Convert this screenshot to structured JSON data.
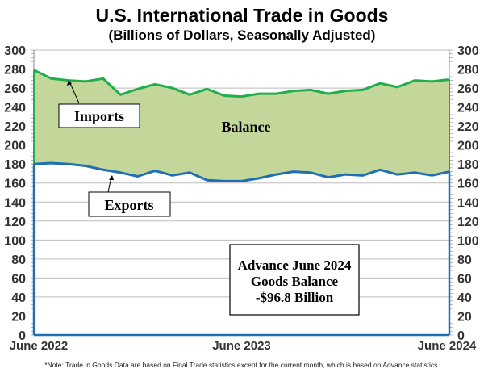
{
  "chart_data": {
    "type": "area",
    "title": "U.S. International Trade in Goods",
    "subtitle": "(Billions of Dollars, Seasonally Adjusted)",
    "x_tick_labels": [
      "June 2022",
      "June 2023",
      "June 2024"
    ],
    "x_start": "2022-06",
    "x_end": "2024-06",
    "x_frequency": "monthly",
    "ylim": [
      0,
      300
    ],
    "y_ticks": [
      0,
      20,
      40,
      60,
      80,
      100,
      120,
      140,
      160,
      180,
      200,
      220,
      240,
      260,
      280,
      300
    ],
    "grid": true,
    "series": [
      {
        "name": "Imports",
        "color": "#1fae4b",
        "values": [
          279,
          270,
          268,
          267,
          270,
          253,
          259,
          264,
          260,
          253,
          259,
          252,
          251,
          254,
          254,
          257,
          258,
          254,
          257,
          258,
          265,
          261,
          268,
          267,
          269
        ]
      },
      {
        "name": "Exports",
        "color": "#1f6fb4",
        "values": [
          180,
          181,
          180,
          178,
          174,
          171,
          167,
          173,
          168,
          171,
          163,
          162,
          162,
          165,
          169,
          172,
          171,
          166,
          169,
          168,
          174,
          169,
          171,
          168,
          172
        ]
      }
    ],
    "fill_label": "Balance",
    "fill_color": "#c4d79b",
    "annotation": [
      "Advance June 2024",
      "Goods Balance",
      "-$96.8 Billion"
    ]
  },
  "note": "*Note: Trade in Goods Data are based on Final Trade statistics except for the current month, which is based on Advance statistics."
}
